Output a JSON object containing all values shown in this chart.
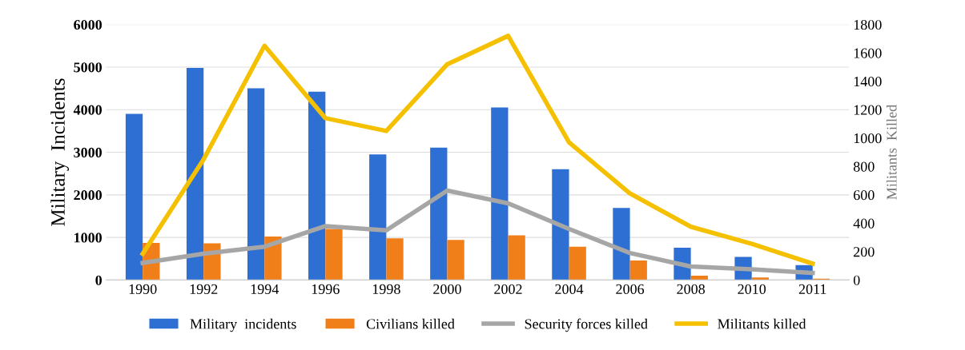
{
  "chart_data": {
    "type": "bar",
    "ylabel": "Military  Incidents",
    "y2label": "Militants  Killed",
    "categories": [
      "1990",
      "1992",
      "1994",
      "1996",
      "1998",
      "2000",
      "2002",
      "2004",
      "2006",
      "2008",
      "2010",
      "2011"
    ],
    "series": [
      {
        "name": "Military  incidents",
        "color": "#2e6fd4",
        "values": [
          3900,
          4980,
          4500,
          4420,
          2950,
          3110,
          4050,
          2600,
          1690,
          760,
          540,
          350
        ]
      },
      {
        "name": "Civilians killed",
        "color": "#f07f1a",
        "values": [
          870,
          860,
          1020,
          1200,
          980,
          940,
          1050,
          780,
          460,
          100,
          60,
          30
        ]
      },
      {
        "name": "Security forces killed",
        "type": "line",
        "axis": "y2",
        "color": "#a6a6a6",
        "values": [
          120,
          185,
          235,
          380,
          350,
          630,
          540,
          360,
          190,
          95,
          75,
          50
        ]
      },
      {
        "name": "Militants killed",
        "type": "line",
        "axis": "y2",
        "color": "#f5c000",
        "values": [
          185,
          850,
          1650,
          1140,
          1050,
          1520,
          1720,
          970,
          610,
          375,
          255,
          115
        ]
      }
    ],
    "ylim": [
      0,
      6000
    ],
    "yticks": [
      0,
      1000,
      2000,
      3000,
      4000,
      5000,
      6000
    ],
    "y2lim": [
      0,
      1800
    ],
    "y2ticks": [
      0,
      200,
      400,
      600,
      800,
      1000,
      1200,
      1400,
      1600,
      1800
    ],
    "grid": "y",
    "legend": "bottom"
  }
}
